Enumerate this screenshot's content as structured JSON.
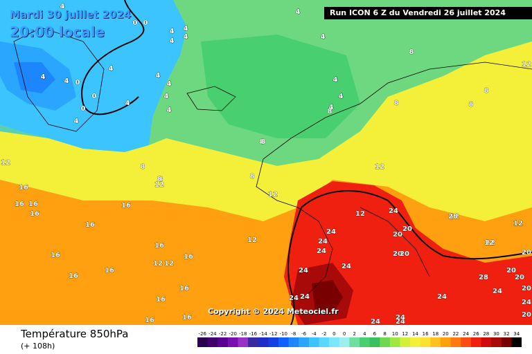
{
  "map": {
    "date_line": "Mardi 30 juillet 2024",
    "time_line": "20:00 locale",
    "run_banner": "Run ICON 6 Z du Vendredi 26 juillet 2024",
    "copyright": "Copyright © 2024 Meteociel.fr"
  },
  "footer": {
    "variable": "Température 850hPa",
    "lead_time": "(+ 108h)"
  },
  "legend": {
    "labels": [
      "-26",
      "-24",
      "-22",
      "-20",
      "-18",
      "-16",
      "-14",
      "-12",
      "-10",
      "-8",
      "-6",
      "-4",
      "-2",
      "0",
      "0",
      "2",
      "4",
      "6",
      "8",
      "10",
      "12",
      "14",
      "16",
      "18",
      "20",
      "22",
      "24",
      "26",
      "28",
      "30",
      "32",
      "34"
    ],
    "colors": [
      "#2a004f",
      "#3f006e",
      "#5a0090",
      "#7a10b0",
      "#9b30c8",
      "#3a2aa0",
      "#1f2ec8",
      "#1440e0",
      "#1060ff",
      "#1c86ff",
      "#2aa6ff",
      "#3cc4ff",
      "#5ad8ff",
      "#7de6ff",
      "#9af0f0",
      "#6de0a0",
      "#48d070",
      "#3ac060",
      "#6ed850",
      "#9ee840",
      "#d2f03a",
      "#f4f03a",
      "#ffe030",
      "#ffc020",
      "#ffa010",
      "#ff7a10",
      "#ff4a10",
      "#f02010",
      "#d00a0a",
      "#a80a0a",
      "#780000",
      "#000000"
    ]
  },
  "isotherm_labels": [
    "4",
    "0",
    "0",
    "4",
    "4",
    "4",
    "4",
    "4",
    "4",
    "4",
    "4",
    "4",
    "4",
    "4",
    "4",
    "4",
    "4",
    "0",
    "0",
    "0",
    "4",
    "4",
    "4",
    "4",
    "8",
    "8",
    "8",
    "8",
    "8",
    "8",
    "8",
    "12",
    "12",
    "12",
    "12",
    "12",
    "12",
    "16",
    "16",
    "16",
    "16",
    "16",
    "16",
    "16",
    "16",
    "16",
    "16",
    "16",
    "16",
    "16",
    "16",
    "16",
    "12",
    "12",
    "12",
    "12",
    "24",
    "24",
    "24",
    "24",
    "24",
    "24",
    "24",
    "28",
    "24",
    "24",
    "24",
    "24",
    "24",
    "24",
    "24",
    "20",
    "20",
    "20",
    "20",
    "20",
    "20",
    "20",
    "20",
    "20",
    "28",
    "12",
    "12",
    "12",
    "12",
    "8",
    "8",
    "8",
    "8"
  ]
}
